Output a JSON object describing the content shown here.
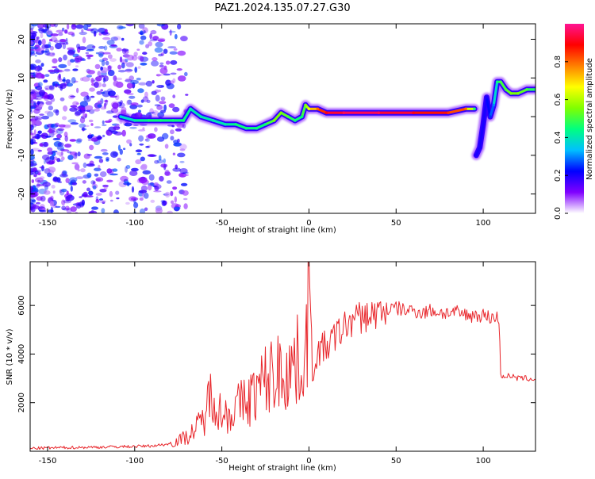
{
  "figure": {
    "title": "PAZ1.2024.135.07.27.G30"
  },
  "chart_data": [
    {
      "type": "heatmap",
      "xlabel": "Height of straight line (km)",
      "ylabel": "Frequency (Hz)",
      "xlim": [
        -160,
        130
      ],
      "ylim": [
        -25,
        24
      ],
      "xticks": [
        -150,
        -100,
        -50,
        0,
        50,
        100
      ],
      "yticks": [
        -20,
        -10,
        0,
        10,
        20
      ],
      "colorbar": {
        "label": "Normalized spectral amplitude",
        "range": [
          0,
          1
        ],
        "ticks": [
          0.0,
          0.2,
          0.4,
          0.6,
          0.8
        ],
        "colormap": "gist_ncar",
        "colors": [
          "#ffffff",
          "#8000ff",
          "#0000ff",
          "#00c0ff",
          "#00ff80",
          "#80ff00",
          "#ffff00",
          "#ff8000",
          "#ff0000",
          "#ff1493"
        ]
      },
      "ridge": {
        "x": [
          -108,
          -100,
          -92,
          -85,
          -78,
          -72,
          -68,
          -62,
          -55,
          -48,
          -42,
          -36,
          -30,
          -25,
          -20,
          -16,
          -12,
          -8,
          -4,
          -2,
          0,
          5,
          10,
          20,
          40,
          60,
          80,
          90,
          95
        ],
        "y": [
          0,
          -1,
          -1,
          -1,
          -1,
          -1,
          2,
          0,
          -1,
          -2,
          -2,
          -3,
          -3,
          -2,
          -1,
          1,
          0,
          -1,
          0,
          3,
          2,
          2,
          1,
          1,
          1,
          1,
          1,
          2,
          2
        ],
        "amplitude": [
          0.35,
          0.4,
          0.45,
          0.45,
          0.45,
          0.45,
          0.4,
          0.4,
          0.4,
          0.4,
          0.45,
          0.45,
          0.45,
          0.45,
          0.55,
          0.55,
          0.5,
          0.45,
          0.45,
          0.55,
          0.65,
          0.8,
          0.9,
          0.95,
          0.95,
          0.9,
          0.85,
          0.8,
          0.45
        ]
      },
      "upper_branch": {
        "x": [
          96,
          98,
          100,
          102,
          104,
          106,
          108,
          110,
          113,
          116,
          120,
          125,
          130
        ],
        "y": [
          -10,
          -8,
          -2,
          5,
          0,
          3,
          9,
          9,
          7,
          6,
          6,
          7,
          7
        ],
        "amplitude": [
          0.2,
          0.2,
          0.2,
          0.2,
          0.25,
          0.3,
          0.45,
          0.5,
          0.5,
          0.55,
          0.55,
          0.5,
          0.45
        ]
      }
    },
    {
      "type": "line",
      "xlabel": "Height of straight line (km)",
      "ylabel": "SNR (10 * v/v)",
      "xlim": [
        -160,
        130
      ],
      "ylim": [
        0,
        7800
      ],
      "xticks": [
        -150,
        -100,
        -50,
        0,
        50,
        100
      ],
      "yticks": [
        2000,
        4000,
        6000
      ],
      "color": "#e8262b",
      "x": [
        -160,
        -140,
        -120,
        -100,
        -90,
        -80,
        -75,
        -70,
        -65,
        -60,
        -57,
        -55,
        -52,
        -50,
        -45,
        -40,
        -35,
        -30,
        -25,
        -20,
        -15,
        -10,
        -5,
        -2,
        0,
        2,
        5,
        10,
        15,
        20,
        25,
        30,
        35,
        40,
        45,
        50,
        55,
        60,
        65,
        70,
        75,
        80,
        85,
        90,
        95,
        100,
        105,
        109,
        110,
        112,
        115,
        120,
        125,
        130
      ],
      "y": [
        120,
        150,
        170,
        200,
        220,
        300,
        450,
        600,
        900,
        1400,
        2200,
        2600,
        1800,
        1500,
        1600,
        1900,
        2100,
        2500,
        2900,
        3200,
        3300,
        3500,
        3700,
        3900,
        7500,
        3400,
        4100,
        4300,
        4700,
        5100,
        5400,
        5500,
        5600,
        5700,
        5800,
        5900,
        5800,
        5800,
        5700,
        5800,
        5700,
        5700,
        5700,
        5600,
        5600,
        5600,
        5500,
        5500,
        3100,
        3100,
        3100,
        3000,
        3000,
        2950
      ]
    }
  ]
}
